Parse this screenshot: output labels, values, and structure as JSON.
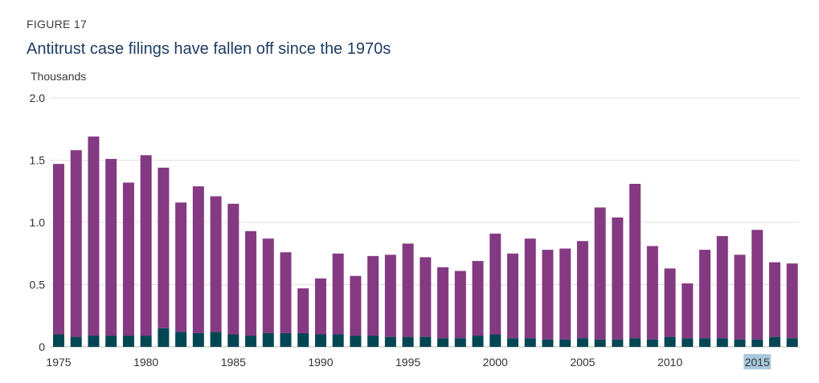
{
  "figure_label": "FIGURE 17",
  "title": "Antitrust case filings have fallen off since the 1970s",
  "chart_data": {
    "type": "bar",
    "stacked": true,
    "ylabel": "Thousands",
    "ylim": [
      0,
      2.0
    ],
    "yticks": [
      "0",
      "0.5",
      "1.0",
      "1.5",
      "2.0"
    ],
    "xticks": [
      "1975",
      "1980",
      "1985",
      "1990",
      "1995",
      "2000",
      "2005",
      "2010",
      "2015"
    ],
    "highlighted_tick": "2015",
    "grid": true,
    "categories": [
      1975,
      1976,
      1977,
      1978,
      1979,
      1980,
      1981,
      1982,
      1983,
      1984,
      1985,
      1986,
      1987,
      1988,
      1989,
      1990,
      1991,
      1992,
      1993,
      1994,
      1995,
      1996,
      1997,
      1998,
      1999,
      2000,
      2001,
      2002,
      2003,
      2004,
      2005,
      2006,
      2007,
      2008,
      2009,
      2010,
      2011,
      2012,
      2013,
      2014,
      2015,
      2016,
      2017
    ],
    "series": [
      {
        "color": "#004653",
        "values": [
          0.1,
          0.08,
          0.09,
          0.09,
          0.09,
          0.09,
          0.15,
          0.12,
          0.11,
          0.12,
          0.1,
          0.09,
          0.11,
          0.11,
          0.11,
          0.1,
          0.1,
          0.09,
          0.09,
          0.08,
          0.08,
          0.08,
          0.07,
          0.07,
          0.09,
          0.1,
          0.07,
          0.07,
          0.06,
          0.06,
          0.07,
          0.06,
          0.06,
          0.07,
          0.06,
          0.08,
          0.07,
          0.07,
          0.07,
          0.06,
          0.06,
          0.08,
          0.07
        ]
      },
      {
        "color": "#843a82",
        "values": [
          1.37,
          1.5,
          1.6,
          1.42,
          1.23,
          1.45,
          1.29,
          1.04,
          1.18,
          1.09,
          1.05,
          0.84,
          0.76,
          0.65,
          0.36,
          0.45,
          0.65,
          0.48,
          0.64,
          0.66,
          0.75,
          0.64,
          0.57,
          0.54,
          0.6,
          0.81,
          0.68,
          0.8,
          0.72,
          0.73,
          0.78,
          1.06,
          0.98,
          1.24,
          0.75,
          0.55,
          0.44,
          0.71,
          0.82,
          0.68,
          0.88,
          0.6,
          0.6
        ]
      }
    ]
  }
}
